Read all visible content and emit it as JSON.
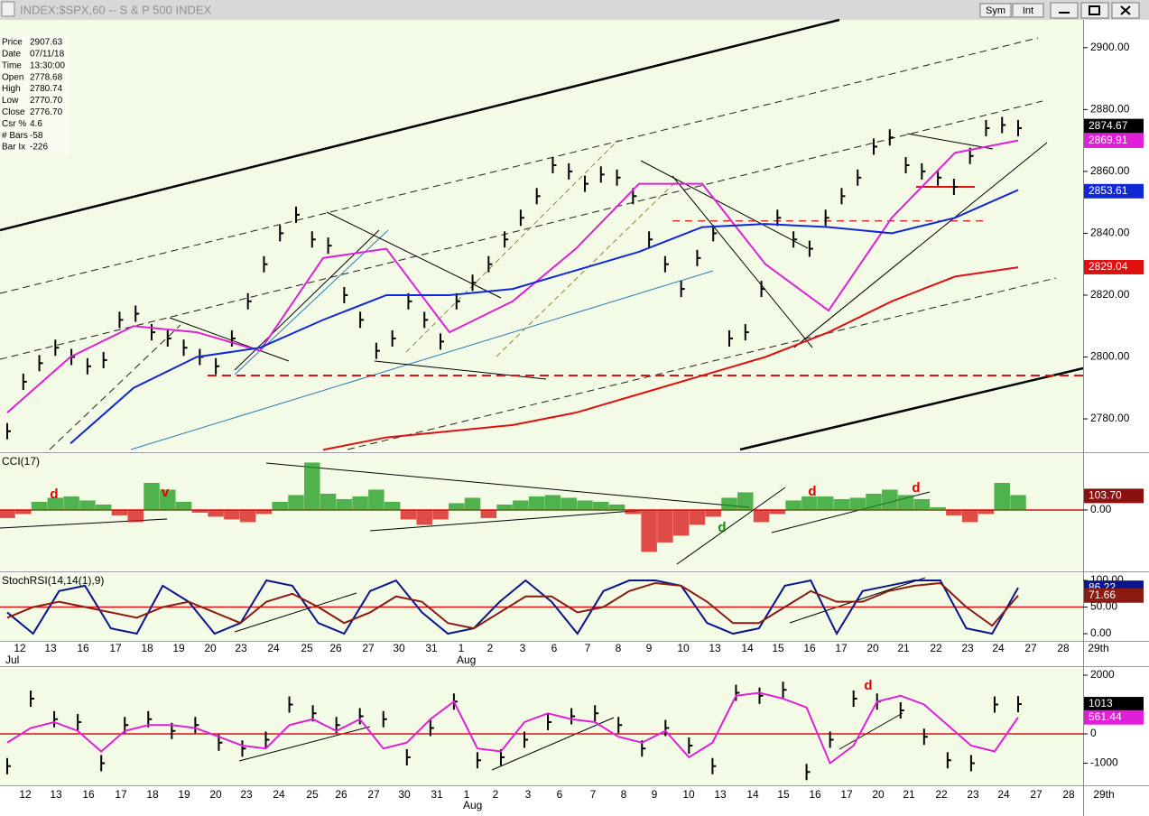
{
  "window": {
    "title": "INDEX:$SPX,60 -- S & P 500 INDEX",
    "buttons": [
      "Sym",
      "Int"
    ]
  },
  "info_panel": [
    [
      "Price",
      "2907.63"
    ],
    [
      "Date",
      "07/11/18"
    ],
    [
      "Time",
      "13:30:00"
    ],
    [
      "Open",
      "2778.68"
    ],
    [
      "High",
      "2780.74"
    ],
    [
      "Low",
      "2770.70"
    ],
    [
      "Close",
      "2776.70"
    ],
    [
      "Csr %",
      "4.6"
    ],
    [
      "# Bars",
      "-58"
    ],
    [
      "Bar Ix",
      "-226"
    ]
  ],
  "x_axis": {
    "categories": [
      "12",
      "13",
      "16",
      "17",
      "18",
      "19",
      "20",
      "23",
      "24",
      "25",
      "26",
      "27",
      "30",
      "31",
      "1",
      "2",
      "3",
      "6",
      "7",
      "8",
      "9",
      "10",
      "13",
      "14",
      "15",
      "16",
      "17",
      "20",
      "21",
      "22",
      "23",
      "24",
      "27",
      "28",
      "29th"
    ],
    "months": [
      "Jul",
      "Aug"
    ]
  },
  "chart_data": [
    {
      "type": "price",
      "series": [
        {
          "style": "bars",
          "color": "#000000",
          "values": [
            2776,
            2792,
            2798,
            2803,
            2800,
            2797,
            2799,
            2812,
            2814,
            2808,
            2806,
            2803,
            2800,
            2797,
            2806,
            2818,
            2830,
            2840,
            2846,
            2838,
            2836,
            2820,
            2812,
            2802,
            2806,
            2818,
            2812,
            2805,
            2818,
            2824,
            2830,
            2838,
            2845,
            2852,
            2862,
            2860,
            2856,
            2859,
            2858,
            2852,
            2838,
            2830,
            2822,
            2832,
            2840,
            2806,
            2808,
            2822,
            2845,
            2838,
            2835,
            2845,
            2852,
            2858,
            2868,
            2871,
            2862,
            2860,
            2858,
            2855,
            2865,
            2874,
            2875,
            2874
          ]
        },
        {
          "style": "line",
          "color": "#e020d8",
          "values": [
            2782,
            2800,
            2810,
            2808,
            2802,
            2832,
            2835,
            2808,
            2818,
            2835,
            2856,
            2856,
            2830,
            2815,
            2845,
            2866,
            2870
          ]
        },
        {
          "style": "line",
          "color": "#1028d8",
          "values": [
            null,
            2772,
            2790,
            2800,
            2803,
            2812,
            2820,
            2820,
            2822,
            2828,
            2834,
            2842,
            2843,
            2842,
            2840,
            2845,
            2854
          ]
        },
        {
          "style": "line",
          "color": "#e01010",
          "values": [
            null,
            null,
            null,
            null,
            null,
            2770,
            2774,
            2776,
            2778,
            2782,
            2788,
            2794,
            2800,
            2808,
            2818,
            2826,
            2829
          ]
        }
      ],
      "levels": [
        2794,
        2844,
        2855
      ],
      "ylim": [
        2769.5,
        2909
      ],
      "yticks": [
        {
          "value": 2780,
          "label": "2780.00"
        },
        {
          "value": 2800,
          "label": "2800.00"
        },
        {
          "value": 2820,
          "label": "2820.00"
        },
        {
          "value": 2840,
          "label": "2840.00"
        },
        {
          "value": 2860,
          "label": "2860.00"
        },
        {
          "value": 2880,
          "label": "2880.00"
        },
        {
          "value": 2900,
          "label": "2900.00"
        }
      ],
      "value_tags": [
        2874.67,
        2869.91,
        2853.61,
        2829.04
      ],
      "value_tag_colors": [
        "#000000",
        "#e020d8",
        "#1028d8",
        "#e01010"
      ]
    },
    {
      "type": "oscillator",
      "title": "CCI(17)",
      "series": [
        {
          "style": "histogram",
          "up_color": "#1a9a1a",
          "down_color": "#d81010",
          "values": [
            -60,
            -30,
            60,
            90,
            100,
            70,
            40,
            -40,
            -90,
            200,
            150,
            60,
            -20,
            -50,
            -70,
            -90,
            -30,
            60,
            110,
            350,
            120,
            80,
            100,
            150,
            60,
            -70,
            -110,
            -70,
            50,
            90,
            -60,
            40,
            70,
            100,
            110,
            90,
            70,
            60,
            40,
            -30,
            -310,
            -240,
            -190,
            -110,
            -50,
            90,
            130,
            -90,
            -30,
            70,
            100,
            100,
            80,
            90,
            120,
            150,
            110,
            80,
            20,
            -40,
            -90,
            -30,
            200,
            110
          ]
        }
      ],
      "reference_line": 0,
      "ylim": [
        -447,
        413
      ],
      "yticks": [
        {
          "value": 0,
          "label": "0.00"
        }
      ],
      "value_tags": [
        103.7
      ],
      "value_tag_labels": [
        "103.70"
      ],
      "value_tag_colors": [
        "#8b1010"
      ],
      "annotations": [
        {
          "text": "d",
          "color": "#e00000"
        },
        {
          "text": "v",
          "color": "#e00000"
        },
        {
          "text": "d",
          "color": "#108a10"
        },
        {
          "text": "d",
          "color": "#e00000"
        },
        {
          "text": "d",
          "color": "#e00000"
        }
      ]
    },
    {
      "type": "oscillator",
      "title": "StochRSI(14,14(1),9)",
      "series": [
        {
          "style": "line",
          "color": "#0a148c",
          "values": [
            40,
            0,
            80,
            90,
            10,
            0,
            90,
            60,
            0,
            20,
            100,
            90,
            20,
            0,
            80,
            100,
            40,
            0,
            10,
            60,
            100,
            60,
            0,
            80,
            100,
            100,
            90,
            20,
            0,
            10,
            90,
            100,
            0,
            80,
            90,
            100,
            100,
            10,
            0,
            86.22
          ]
        },
        {
          "style": "line",
          "color": "#8b1a10",
          "values": [
            30,
            50,
            60,
            50,
            40,
            30,
            50,
            60,
            40,
            20,
            60,
            75,
            50,
            20,
            40,
            70,
            60,
            20,
            10,
            40,
            70,
            70,
            40,
            50,
            80,
            95,
            90,
            60,
            20,
            20,
            50,
            80,
            60,
            60,
            80,
            90,
            95,
            50,
            15,
            71.66
          ]
        }
      ],
      "reference_line": 50,
      "ylim": [
        -13.5,
        113.6
      ],
      "yticks": [
        {
          "value": 100,
          "label": "100.00"
        },
        {
          "value": 50,
          "label": "50.00"
        },
        {
          "value": 0,
          "label": "0.00"
        }
      ],
      "value_tags": [
        86.22,
        71.66
      ],
      "value_tag_colors": [
        "#0a148c",
        "#8b1a10"
      ]
    },
    {
      "type": "oscillator",
      "series": [
        {
          "style": "bars",
          "color": "#000000",
          "values": [
            -1100,
            1200,
            500,
            400,
            -1000,
            300,
            500,
            100,
            300,
            -300,
            -500,
            -200,
            1000,
            700,
            300,
            600,
            500,
            -800,
            200,
            1100,
            -900,
            -800,
            -200,
            400,
            600,
            700,
            300,
            -500,
            200,
            -400,
            -1100,
            1400,
            1300,
            1500,
            -1300,
            -200,
            1200,
            1100,
            800,
            -100,
            -900,
            -1000,
            1000,
            1013
          ]
        },
        {
          "style": "line",
          "color": "#e020d8",
          "values": [
            -300,
            200,
            400,
            100,
            -600,
            100,
            300,
            300,
            200,
            -100,
            -400,
            -500,
            300,
            500,
            100,
            500,
            -500,
            -300,
            500,
            1100,
            -500,
            -600,
            400,
            700,
            500,
            400,
            -100,
            -300,
            100,
            -800,
            -300,
            1300,
            1400,
            1200,
            900,
            -1000,
            -400,
            1100,
            1300,
            1000,
            300,
            -400,
            -600,
            561.44
          ]
        }
      ],
      "reference_line": 0,
      "ylim": [
        -1754,
        2246
      ],
      "yticks": [
        2000,
        0,
        -1000
      ],
      "value_tags": [
        1013,
        561.44
      ],
      "value_tag_colors": [
        "#000000",
        "#e020d8"
      ],
      "annotations": [
        {
          "text": "d",
          "color": "#e00000"
        }
      ]
    }
  ]
}
